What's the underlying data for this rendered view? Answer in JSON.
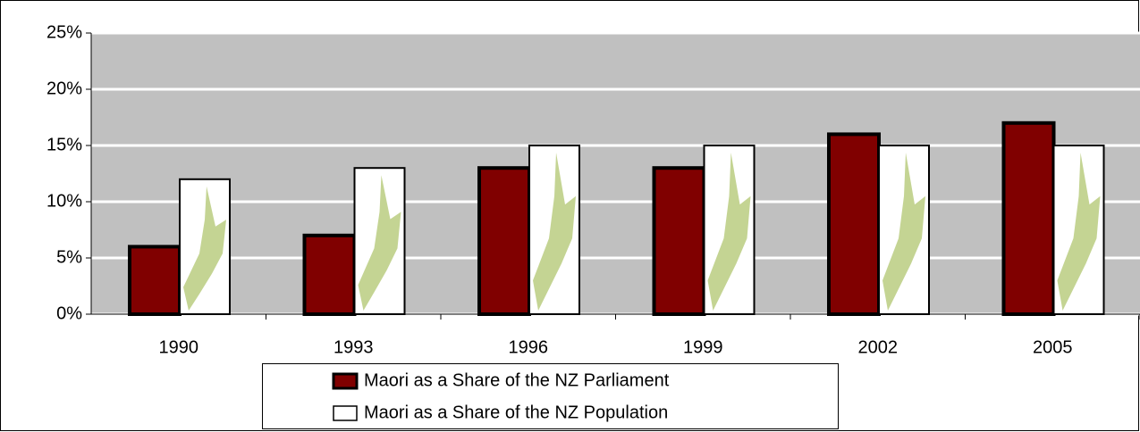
{
  "chart_data": {
    "type": "bar",
    "categories": [
      "1990",
      "1993",
      "1996",
      "1999",
      "2002",
      "2005"
    ],
    "series": [
      {
        "name": "Maori as a Share of the NZ Parliament",
        "color": "#800000",
        "values": [
          6,
          7,
          13,
          13,
          16,
          17
        ]
      },
      {
        "name": "Maori as a Share of the NZ Population",
        "color": "#ffffff",
        "values": [
          12,
          13,
          15,
          15,
          15,
          15
        ]
      }
    ],
    "ylim": [
      0,
      25
    ],
    "yticks": [
      {
        "value": 0,
        "label": "0%"
      },
      {
        "value": 5,
        "label": "5%"
      },
      {
        "value": 10,
        "label": "10%"
      },
      {
        "value": 15,
        "label": "15%"
      },
      {
        "value": 20,
        "label": "20%"
      },
      {
        "value": 25,
        "label": "25%"
      }
    ],
    "grid": true,
    "plot_background": "#c0c0c0",
    "legend": "bottom"
  }
}
